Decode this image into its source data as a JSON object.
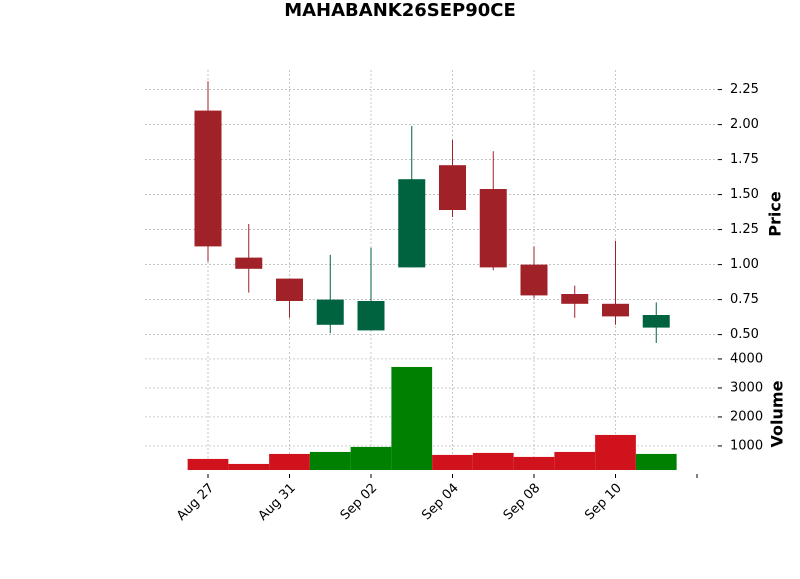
{
  "chart_data": {
    "type": "candlestick",
    "title": "MAHABANK26SEP90CE",
    "categories": [
      "Aug 27",
      null,
      "Aug 31",
      null,
      "Sep 02",
      null,
      "Sep 04",
      null,
      "Sep 08",
      null,
      "Sep 10",
      null
    ],
    "open": [
      2.1,
      1.05,
      0.9,
      0.57,
      0.53,
      0.98,
      1.71,
      1.54,
      1.0,
      0.79,
      0.72,
      0.55
    ],
    "high": [
      2.31,
      1.29,
      0.9,
      1.07,
      1.12,
      1.99,
      1.89,
      1.81,
      1.13,
      0.85,
      1.17,
      0.73
    ],
    "low": [
      1.02,
      0.8,
      0.62,
      0.51,
      0.53,
      0.98,
      1.34,
      0.96,
      0.76,
      0.62,
      0.57,
      0.44
    ],
    "close": [
      1.13,
      0.97,
      0.74,
      0.75,
      0.74,
      1.61,
      1.39,
      0.98,
      0.78,
      0.72,
      0.63,
      0.64
    ],
    "volume": [
      552,
      379,
      724,
      793,
      966,
      3724,
      690,
      759,
      621,
      793,
      1379,
      724
    ],
    "ylabel": "Price",
    "volume_ylabel": "Volume",
    "ylim": [
      0.39,
      2.39
    ],
    "yticks": [
      {
        "value": 0.5,
        "label": "0.50"
      },
      0.75,
      {
        "value": 1.0,
        "label": "1.00"
      },
      1.25,
      {
        "value": 1.5,
        "label": "1.50"
      },
      1.75,
      {
        "value": 2.0,
        "label": "2.00"
      },
      2.25
    ],
    "volume_ylim": [
      170,
      4240
    ],
    "volume_yticks": [
      1000,
      2000,
      3000,
      4000
    ],
    "up_color": "#006340",
    "down_color": "#a02128",
    "volume_up_color": "#008000",
    "volume_down_color": "#d0121d",
    "grid": true
  }
}
